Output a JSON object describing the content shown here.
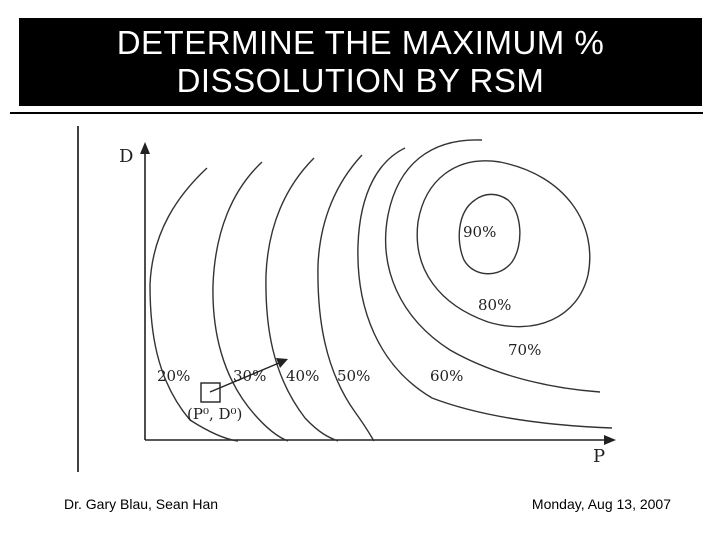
{
  "slide": {
    "title_line1": "DETERMINE THE MAXIMUM %",
    "title_line2": "DISSOLUTION BY RSM",
    "footer_left": "Dr. Gary Blau, Sean Han",
    "footer_right": "Monday, Aug 13, 2007"
  },
  "diagram": {
    "axis_y_label": "D",
    "axis_x_label": "P",
    "start_point_label": "(P⁰, D⁰)",
    "contours": [
      "20%",
      "30%",
      "40%",
      "50%",
      "60%",
      "70%",
      "80%",
      "90%"
    ]
  },
  "colors": {
    "title_bg": "#000000",
    "title_text": "#ffffff",
    "ink": "#222222"
  }
}
